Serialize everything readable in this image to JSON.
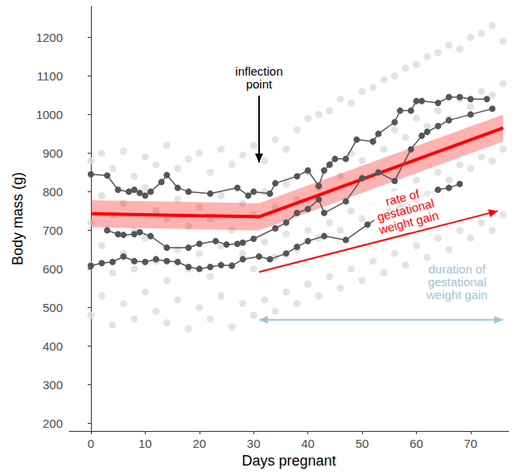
{
  "chart_data": {
    "type": "line",
    "x_label": "Days pregnant",
    "y_label": "Body mass (g)",
    "xlim": [
      -4,
      77
    ],
    "xticks": [
      0,
      10,
      20,
      30,
      40,
      50,
      60,
      70
    ],
    "ylim": [
      180,
      1280
    ],
    "yticks": [
      200,
      300,
      400,
      500,
      600,
      700,
      800,
      900,
      1000,
      1100,
      1200
    ],
    "grid": false,
    "series": [
      {
        "type": "scatter",
        "color": "#dcdcdc",
        "marker": "circle",
        "x": [
          0,
          0,
          0,
          0,
          2,
          2,
          2,
          2,
          4,
          4,
          4,
          4,
          6,
          6,
          6,
          6,
          8,
          8,
          8,
          8,
          10,
          10,
          10,
          10,
          12,
          12,
          12,
          12,
          14,
          14,
          14,
          14,
          16,
          16,
          16,
          16,
          18,
          18,
          18,
          18,
          20,
          20,
          20,
          20,
          22,
          22,
          22,
          22,
          24,
          24,
          24,
          24,
          26,
          26,
          26,
          26,
          28,
          28,
          28,
          28,
          30,
          30,
          30,
          30,
          32,
          32,
          32,
          32,
          34,
          34,
          34,
          34,
          36,
          36,
          36,
          36,
          38,
          38,
          38,
          38,
          40,
          40,
          40,
          40,
          42,
          42,
          42,
          42,
          44,
          44,
          44,
          44,
          46,
          46,
          46,
          46,
          48,
          48,
          48,
          48,
          50,
          50,
          50,
          50,
          52,
          52,
          52,
          52,
          54,
          54,
          54,
          54,
          56,
          56,
          56,
          56,
          58,
          58,
          58,
          58,
          60,
          60,
          60,
          60,
          62,
          62,
          62,
          62,
          64,
          64,
          64,
          64,
          66,
          66,
          66,
          66,
          68,
          68,
          68,
          68,
          70,
          70,
          70,
          70,
          72,
          72,
          72,
          72,
          74,
          74,
          74,
          74,
          76,
          76,
          76,
          76
        ],
        "values": [
          480,
          610,
          720,
          880,
          530,
          660,
          790,
          900,
          455,
          590,
          740,
          860,
          510,
          640,
          770,
          905,
          470,
          600,
          700,
          840,
          540,
          680,
          810,
          890,
          490,
          620,
          750,
          870,
          460,
          570,
          730,
          920,
          520,
          650,
          780,
          860,
          445,
          600,
          710,
          885,
          500,
          640,
          760,
          900,
          470,
          580,
          730,
          850,
          530,
          660,
          790,
          910,
          450,
          610,
          700,
          870,
          510,
          640,
          770,
          895,
          480,
          600,
          740,
          920,
          520,
          670,
          800,
          880,
          490,
          630,
          760,
          935,
          540,
          690,
          820,
          910,
          510,
          650,
          780,
          960,
          560,
          700,
          850,
          990,
          530,
          680,
          810,
          1000,
          580,
          720,
          870,
          1010,
          550,
          700,
          840,
          1040,
          600,
          750,
          900,
          1030,
          570,
          730,
          880,
          1060,
          620,
          770,
          930,
          1070,
          590,
          760,
          910,
          1090,
          640,
          800,
          960,
          1100,
          610,
          780,
          940,
          1120,
          660,
          830,
          990,
          1130,
          630,
          810,
          970,
          1150,
          680,
          850,
          1010,
          1160,
          650,
          830,
          990,
          1180,
          700,
          870,
          1040,
          1170,
          680,
          860,
          1020,
          1200,
          720,
          890,
          1060,
          1210,
          700,
          880,
          1050,
          1230,
          740,
          910,
          1080,
          1190
        ]
      },
      {
        "type": "line",
        "color": "#ff0000",
        "x": [
          0,
          31,
          76
        ],
        "values": [
          743,
          735,
          965
        ],
        "lower": [
          708,
          700,
          930
        ],
        "upper": [
          778,
          770,
          1000
        ]
      },
      {
        "type": "line",
        "color": "#555555",
        "marker": "circle",
        "x": [
          0,
          3,
          5,
          7,
          8,
          9,
          10,
          11,
          13,
          14,
          16,
          18,
          22,
          27,
          29,
          30,
          33,
          34,
          38,
          40,
          42,
          43,
          44,
          45,
          47,
          49,
          52,
          53,
          56,
          57,
          59,
          60,
          61,
          64,
          66,
          68,
          70,
          73
        ],
        "values": [
          845,
          842,
          805,
          800,
          805,
          797,
          790,
          800,
          825,
          843,
          810,
          800,
          795,
          810,
          790,
          800,
          795,
          822,
          840,
          855,
          815,
          855,
          870,
          885,
          885,
          935,
          930,
          950,
          980,
          1010,
          1010,
          1035,
          1035,
          1030,
          1045,
          1045,
          1040,
          1040
        ]
      },
      {
        "type": "line",
        "color": "#555555",
        "marker": "circle",
        "x": [
          3,
          5,
          6,
          8,
          9,
          11,
          14,
          18,
          20,
          23,
          25,
          27,
          28,
          30,
          34,
          36,
          38,
          40,
          42,
          43,
          47,
          50,
          53,
          56,
          59,
          61,
          62,
          64,
          66,
          70,
          74
        ],
        "values": [
          700,
          690,
          688,
          690,
          695,
          685,
          655,
          655,
          665,
          672,
          663,
          665,
          668,
          678,
          705,
          720,
          745,
          755,
          780,
          745,
          775,
          835,
          850,
          828,
          910,
          945,
          955,
          970,
          985,
          1000,
          1015
        ]
      },
      {
        "type": "line",
        "color": "#555555",
        "marker": "circle",
        "x": [
          0,
          2,
          4,
          6,
          8,
          10,
          12,
          14,
          16,
          18,
          20,
          22,
          24,
          26,
          28,
          31,
          33,
          36,
          38,
          40,
          43,
          47,
          51,
          55,
          57,
          60,
          62,
          64,
          66,
          68
        ],
        "values": [
          608,
          615,
          618,
          632,
          620,
          618,
          625,
          620,
          618,
          605,
          600,
          605,
          610,
          608,
          625,
          632,
          625,
          640,
          657,
          672,
          685,
          675,
          715,
          750,
          762,
          780,
          795,
          805,
          810,
          820
        ]
      }
    ],
    "annotations": [
      {
        "text": "inflection point",
        "x": 31,
        "y": 1096,
        "color": "#000000",
        "line_style": "arrow",
        "from": [
          31,
          1049
        ],
        "to": [
          31,
          876
        ]
      },
      {
        "text": "rate of gestational weight gain",
        "x": 58,
        "y": 753,
        "color": "#ff0000",
        "line_style": "arrow",
        "from": [
          31,
          592
        ],
        "to": [
          75,
          750
        ]
      },
      {
        "text": "duration of gestational weight gain",
        "x": 67.5,
        "y": 566,
        "color": "#9ec4d6",
        "line_style": "double_arrow",
        "from": [
          31,
          468
        ],
        "to": [
          76,
          468
        ]
      }
    ]
  }
}
